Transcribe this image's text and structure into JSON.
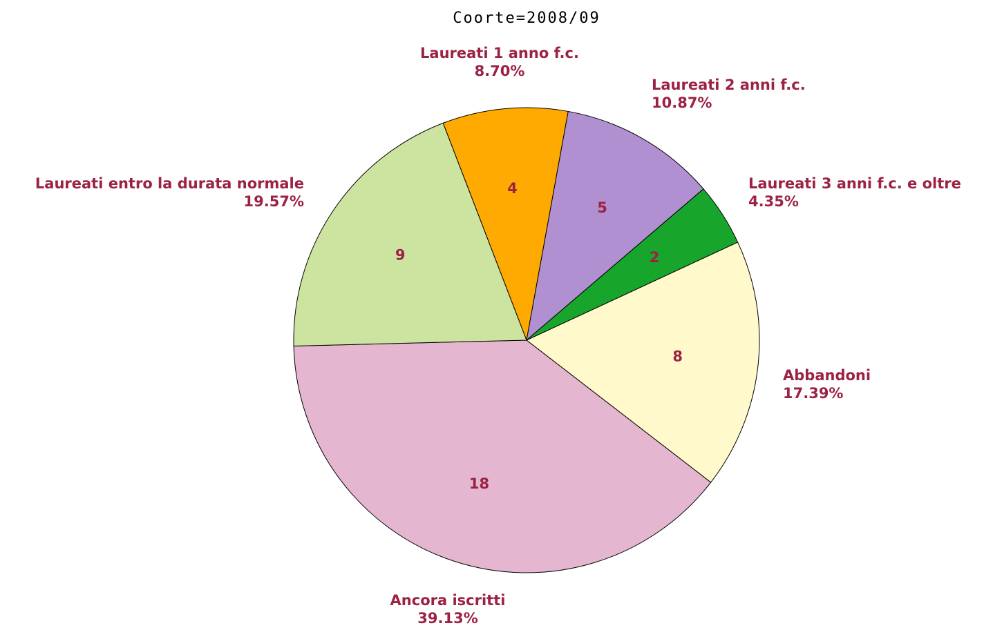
{
  "chart_data": {
    "type": "pie",
    "title": "Coorte=2008/09",
    "categories": [
      "Laureati 1 anno f.c.",
      "Laureati 2 anni f.c.",
      "Laureati 3 anni f.c. e oltre",
      "Abbandoni",
      "Ancora iscritti",
      "Laureati entro la durata normale"
    ],
    "values": [
      4,
      5,
      2,
      8,
      18,
      9
    ],
    "share_labels": [
      "8.70%",
      "10.87%",
      "4.35%",
      "17.39%",
      "39.13%",
      "19.57%"
    ],
    "colors": [
      "#ffaa00",
      "#b090d0",
      "#18a52c",
      "#fff9cc",
      "#e5b6cf",
      "#cde3a0"
    ]
  }
}
